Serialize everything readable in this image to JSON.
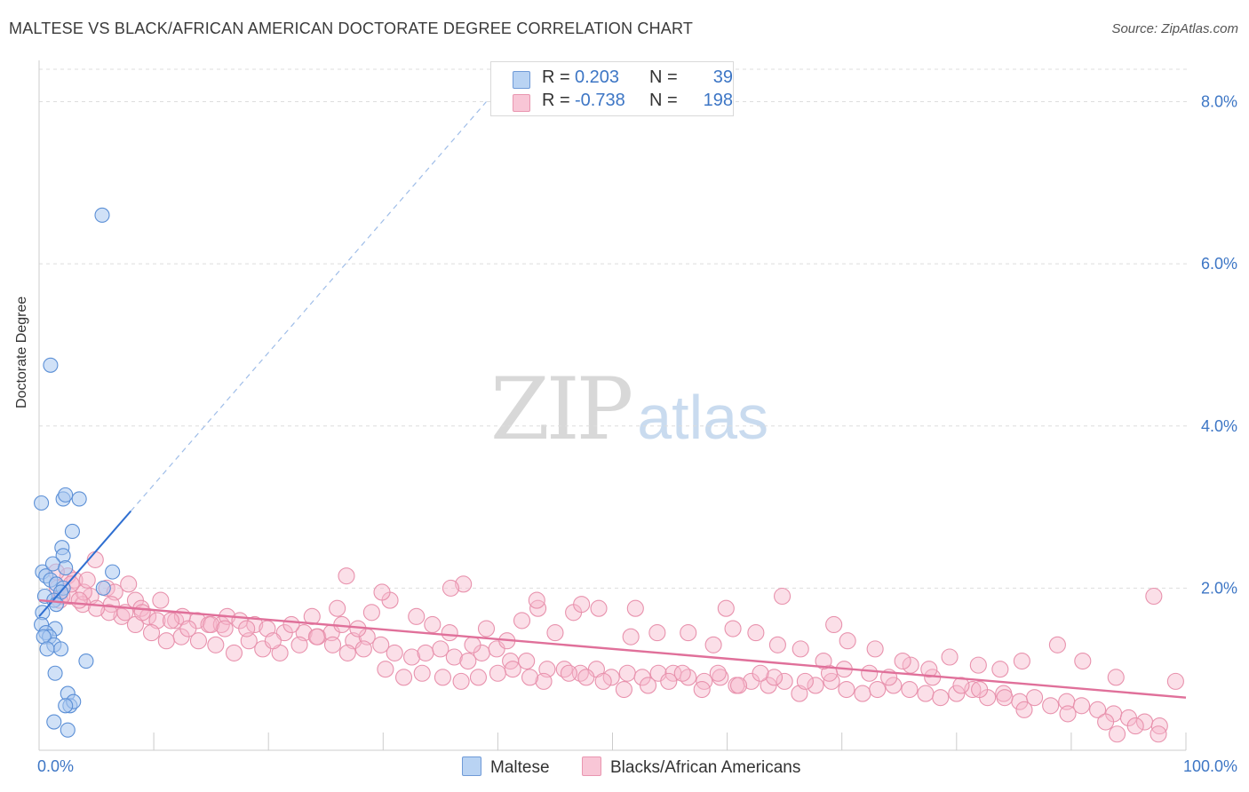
{
  "title": "MALTESE VS BLACK/AFRICAN AMERICAN DOCTORATE DEGREE CORRELATION CHART",
  "source": "Source: ZipAtlas.com",
  "watermark": {
    "zip": "ZIP",
    "atlas": "atlas"
  },
  "legend": {
    "rows": [
      {
        "r_label": "R =",
        "r_value": "0.203",
        "n_label": "N =",
        "n_value": "39"
      },
      {
        "r_label": "R =",
        "r_value": "-0.738",
        "n_label": "N =",
        "n_value": "198"
      }
    ]
  },
  "bottom_legend": {
    "series1": "Maltese",
    "series2": "Blacks/African Americans"
  },
  "colors": {
    "blue_fill": "#a9c8f0",
    "blue_stroke": "#5b8fd6",
    "blue_line": "#2f6fd1",
    "pink_fill": "#f6b9cc",
    "pink_stroke": "#e892ad",
    "pink_line": "#e0709a",
    "axis_text": "#3d76c5",
    "grid": "#dddddd"
  },
  "chart_data": {
    "type": "scatter",
    "title": "MALTESE VS BLACK/AFRICAN AMERICAN DOCTORATE DEGREE CORRELATION CHART",
    "xlabel": "",
    "ylabel": "Doctorate Degree",
    "xlim": [
      0,
      100
    ],
    "ylim": [
      0,
      8.4
    ],
    "x_tick_labels": [
      {
        "value": 0,
        "label": "0.0%"
      },
      {
        "value": 100,
        "label": "100.0%"
      }
    ],
    "y_tick_labels": [
      {
        "value": 2,
        "label": "2.0%"
      },
      {
        "value": 4,
        "label": "4.0%"
      },
      {
        "value": 6,
        "label": "6.0%"
      },
      {
        "value": 8,
        "label": "8.0%"
      }
    ],
    "series": [
      {
        "name": "Maltese",
        "r": 0.203,
        "n": 39,
        "trend": {
          "x0": 0,
          "y0": 1.65,
          "x1": 8,
          "y1": 2.95,
          "dash_to": [
            39,
            8.0
          ]
        },
        "points": [
          [
            5.5,
            6.6
          ],
          [
            1,
            4.75
          ],
          [
            0.2,
            3.05
          ],
          [
            2.1,
            3.1
          ],
          [
            2.3,
            3.15
          ],
          [
            3.5,
            3.1
          ],
          [
            2.9,
            2.7
          ],
          [
            2.0,
            2.5
          ],
          [
            2.1,
            2.4
          ],
          [
            0.3,
            2.2
          ],
          [
            0.6,
            2.15
          ],
          [
            1.2,
            2.3
          ],
          [
            2.3,
            2.25
          ],
          [
            6.4,
            2.2
          ],
          [
            1.0,
            2.1
          ],
          [
            1.5,
            2.05
          ],
          [
            2.1,
            2.0
          ],
          [
            1.9,
            1.95
          ],
          [
            5.6,
            2.0
          ],
          [
            0.5,
            1.9
          ],
          [
            1.3,
            1.85
          ],
          [
            1.5,
            1.8
          ],
          [
            0.3,
            1.7
          ],
          [
            0.2,
            1.55
          ],
          [
            1.4,
            1.5
          ],
          [
            0.6,
            1.45
          ],
          [
            0.9,
            1.4
          ],
          [
            0.4,
            1.4
          ],
          [
            1.3,
            1.3
          ],
          [
            1.9,
            1.25
          ],
          [
            0.7,
            1.25
          ],
          [
            4.1,
            1.1
          ],
          [
            1.4,
            0.95
          ],
          [
            2.5,
            0.7
          ],
          [
            2.7,
            0.55
          ],
          [
            3.0,
            0.6
          ],
          [
            2.3,
            0.55
          ],
          [
            1.3,
            0.35
          ],
          [
            2.5,
            0.25
          ]
        ]
      },
      {
        "name": "Blacks/African Americans",
        "r": -0.738,
        "n": 198,
        "trend": {
          "x0": 0,
          "y0": 1.85,
          "x1": 100,
          "y1": 0.65
        },
        "points": [
          [
            2.5,
            2.15
          ],
          [
            3.1,
            2.1
          ],
          [
            4.9,
            2.35
          ],
          [
            7.8,
            2.05
          ],
          [
            1.6,
            2.0
          ],
          [
            5.9,
            2.0
          ],
          [
            6.6,
            1.95
          ],
          [
            2.7,
            1.9
          ],
          [
            4.5,
            1.9
          ],
          [
            8.4,
            1.85
          ],
          [
            1.8,
            1.85
          ],
          [
            3.8,
            1.8
          ],
          [
            6.3,
            1.8
          ],
          [
            8.9,
            1.75
          ],
          [
            10.6,
            1.85
          ],
          [
            9.5,
            1.65
          ],
          [
            11.9,
            1.6
          ],
          [
            10.3,
            1.6
          ],
          [
            13.8,
            1.6
          ],
          [
            12.5,
            1.65
          ],
          [
            14.8,
            1.55
          ],
          [
            15.9,
            1.55
          ],
          [
            16.4,
            1.65
          ],
          [
            17.5,
            1.6
          ],
          [
            18.8,
            1.55
          ],
          [
            19.9,
            1.5
          ],
          [
            21.4,
            1.45
          ],
          [
            23.1,
            1.45
          ],
          [
            24.3,
            1.4
          ],
          [
            25.5,
            1.45
          ],
          [
            26.4,
            1.55
          ],
          [
            27.4,
            1.35
          ],
          [
            28.6,
            1.4
          ],
          [
            29.8,
            1.3
          ],
          [
            31.0,
            1.2
          ],
          [
            32.5,
            1.15
          ],
          [
            33.7,
            1.2
          ],
          [
            35.0,
            1.25
          ],
          [
            36.2,
            1.15
          ],
          [
            37.4,
            1.1
          ],
          [
            38.6,
            1.2
          ],
          [
            39.9,
            1.25
          ],
          [
            41.1,
            1.1
          ],
          [
            42.5,
            1.1
          ],
          [
            44.3,
            1.0
          ],
          [
            45.8,
            1.0
          ],
          [
            47.2,
            0.95
          ],
          [
            48.6,
            1.0
          ],
          [
            49.9,
            0.9
          ],
          [
            51.3,
            0.95
          ],
          [
            52.6,
            0.9
          ],
          [
            54.0,
            0.95
          ],
          [
            55.3,
            0.95
          ],
          [
            56.6,
            0.9
          ],
          [
            58.0,
            0.85
          ],
          [
            59.4,
            0.9
          ],
          [
            60.8,
            0.8
          ],
          [
            62.1,
            0.85
          ],
          [
            63.6,
            0.8
          ],
          [
            65.0,
            0.85
          ],
          [
            66.3,
            0.7
          ],
          [
            67.7,
            0.8
          ],
          [
            69.1,
            0.85
          ],
          [
            70.4,
            0.75
          ],
          [
            71.8,
            0.7
          ],
          [
            73.1,
            0.75
          ],
          [
            74.5,
            0.8
          ],
          [
            75.9,
            0.75
          ],
          [
            77.3,
            0.7
          ],
          [
            78.6,
            0.65
          ],
          [
            80.0,
            0.7
          ],
          [
            81.4,
            0.75
          ],
          [
            82.7,
            0.65
          ],
          [
            84.1,
            0.7
          ],
          [
            85.5,
            0.6
          ],
          [
            86.8,
            0.65
          ],
          [
            88.2,
            0.55
          ],
          [
            89.6,
            0.6
          ],
          [
            90.9,
            0.55
          ],
          [
            92.3,
            0.5
          ],
          [
            93.7,
            0.45
          ],
          [
            95.0,
            0.4
          ],
          [
            96.4,
            0.35
          ],
          [
            97.7,
            0.3
          ],
          [
            99.1,
            0.85
          ],
          [
            97.6,
            0.2
          ],
          [
            95.6,
            0.3
          ],
          [
            94.0,
            0.2
          ],
          [
            93.0,
            0.35
          ],
          [
            89.7,
            0.45
          ],
          [
            85.9,
            0.5
          ],
          [
            84.2,
            0.65
          ],
          [
            82.0,
            0.75
          ],
          [
            80.4,
            0.8
          ],
          [
            77.9,
            0.9
          ],
          [
            76.0,
            1.05
          ],
          [
            74.1,
            0.9
          ],
          [
            72.4,
            0.95
          ],
          [
            70.2,
            1.0
          ],
          [
            68.9,
            0.95
          ],
          [
            66.8,
            0.85
          ],
          [
            64.1,
            0.9
          ],
          [
            62.9,
            0.95
          ],
          [
            61.0,
            0.8
          ],
          [
            59.2,
            0.95
          ],
          [
            57.8,
            0.75
          ],
          [
            56.1,
            0.95
          ],
          [
            54.9,
            0.85
          ],
          [
            53.1,
            0.8
          ],
          [
            51.0,
            0.75
          ],
          [
            49.2,
            0.85
          ],
          [
            47.7,
            0.9
          ],
          [
            46.2,
            0.95
          ],
          [
            44.0,
            0.85
          ],
          [
            42.8,
            0.9
          ],
          [
            41.3,
            1.0
          ],
          [
            40.0,
            0.95
          ],
          [
            38.3,
            0.9
          ],
          [
            36.8,
            0.85
          ],
          [
            35.2,
            0.9
          ],
          [
            33.4,
            0.95
          ],
          [
            31.8,
            0.9
          ],
          [
            30.2,
            1.0
          ],
          [
            28.3,
            1.25
          ],
          [
            26.9,
            1.2
          ],
          [
            25.6,
            1.3
          ],
          [
            24.2,
            1.4
          ],
          [
            22.7,
            1.3
          ],
          [
            21.0,
            1.2
          ],
          [
            19.5,
            1.25
          ],
          [
            18.3,
            1.35
          ],
          [
            17.0,
            1.2
          ],
          [
            15.4,
            1.3
          ],
          [
            13.9,
            1.35
          ],
          [
            12.4,
            1.4
          ],
          [
            11.1,
            1.35
          ],
          [
            9.8,
            1.45
          ],
          [
            8.4,
            1.55
          ],
          [
            7.2,
            1.65
          ],
          [
            6.1,
            1.7
          ],
          [
            5.0,
            1.75
          ],
          [
            3.9,
            1.95
          ],
          [
            2.0,
            1.9
          ],
          [
            1.5,
            2.2
          ],
          [
            2.8,
            2.05
          ],
          [
            4.2,
            2.1
          ],
          [
            3.5,
            1.85
          ],
          [
            7.5,
            1.7
          ],
          [
            9.0,
            1.7
          ],
          [
            11.5,
            1.6
          ],
          [
            13.0,
            1.5
          ],
          [
            15.0,
            1.55
          ],
          [
            16.2,
            1.5
          ],
          [
            18.1,
            1.5
          ],
          [
            20.4,
            1.35
          ],
          [
            22.0,
            1.55
          ],
          [
            23.8,
            1.65
          ],
          [
            26.0,
            1.75
          ],
          [
            27.8,
            1.5
          ],
          [
            29.0,
            1.7
          ],
          [
            30.6,
            1.85
          ],
          [
            32.9,
            1.65
          ],
          [
            34.3,
            1.55
          ],
          [
            35.8,
            1.45
          ],
          [
            37.8,
            1.3
          ],
          [
            39.0,
            1.5
          ],
          [
            40.8,
            1.35
          ],
          [
            42.1,
            1.6
          ],
          [
            43.5,
            1.75
          ],
          [
            45.0,
            1.45
          ],
          [
            46.6,
            1.7
          ],
          [
            48.8,
            1.75
          ],
          [
            51.6,
            1.4
          ],
          [
            53.9,
            1.45
          ],
          [
            56.6,
            1.45
          ],
          [
            58.8,
            1.3
          ],
          [
            60.5,
            1.5
          ],
          [
            62.5,
            1.45
          ],
          [
            64.4,
            1.3
          ],
          [
            66.4,
            1.25
          ],
          [
            68.4,
            1.1
          ],
          [
            70.5,
            1.35
          ],
          [
            72.9,
            1.25
          ],
          [
            75.3,
            1.1
          ],
          [
            77.6,
            1.0
          ],
          [
            79.4,
            1.15
          ],
          [
            81.9,
            1.05
          ],
          [
            83.8,
            1.0
          ],
          [
            85.7,
            1.1
          ],
          [
            88.8,
            1.3
          ],
          [
            91.0,
            1.1
          ],
          [
            93.9,
            0.9
          ],
          [
            97.2,
            1.9
          ],
          [
            37.0,
            2.05
          ],
          [
            35.9,
            2.0
          ],
          [
            26.8,
            2.15
          ],
          [
            29.9,
            1.95
          ],
          [
            43.4,
            1.85
          ],
          [
            47.3,
            1.8
          ],
          [
            52.0,
            1.75
          ],
          [
            59.9,
            1.75
          ],
          [
            64.8,
            1.9
          ],
          [
            69.3,
            1.55
          ]
        ]
      }
    ]
  },
  "y_axis_title": "Doctorate Degree"
}
